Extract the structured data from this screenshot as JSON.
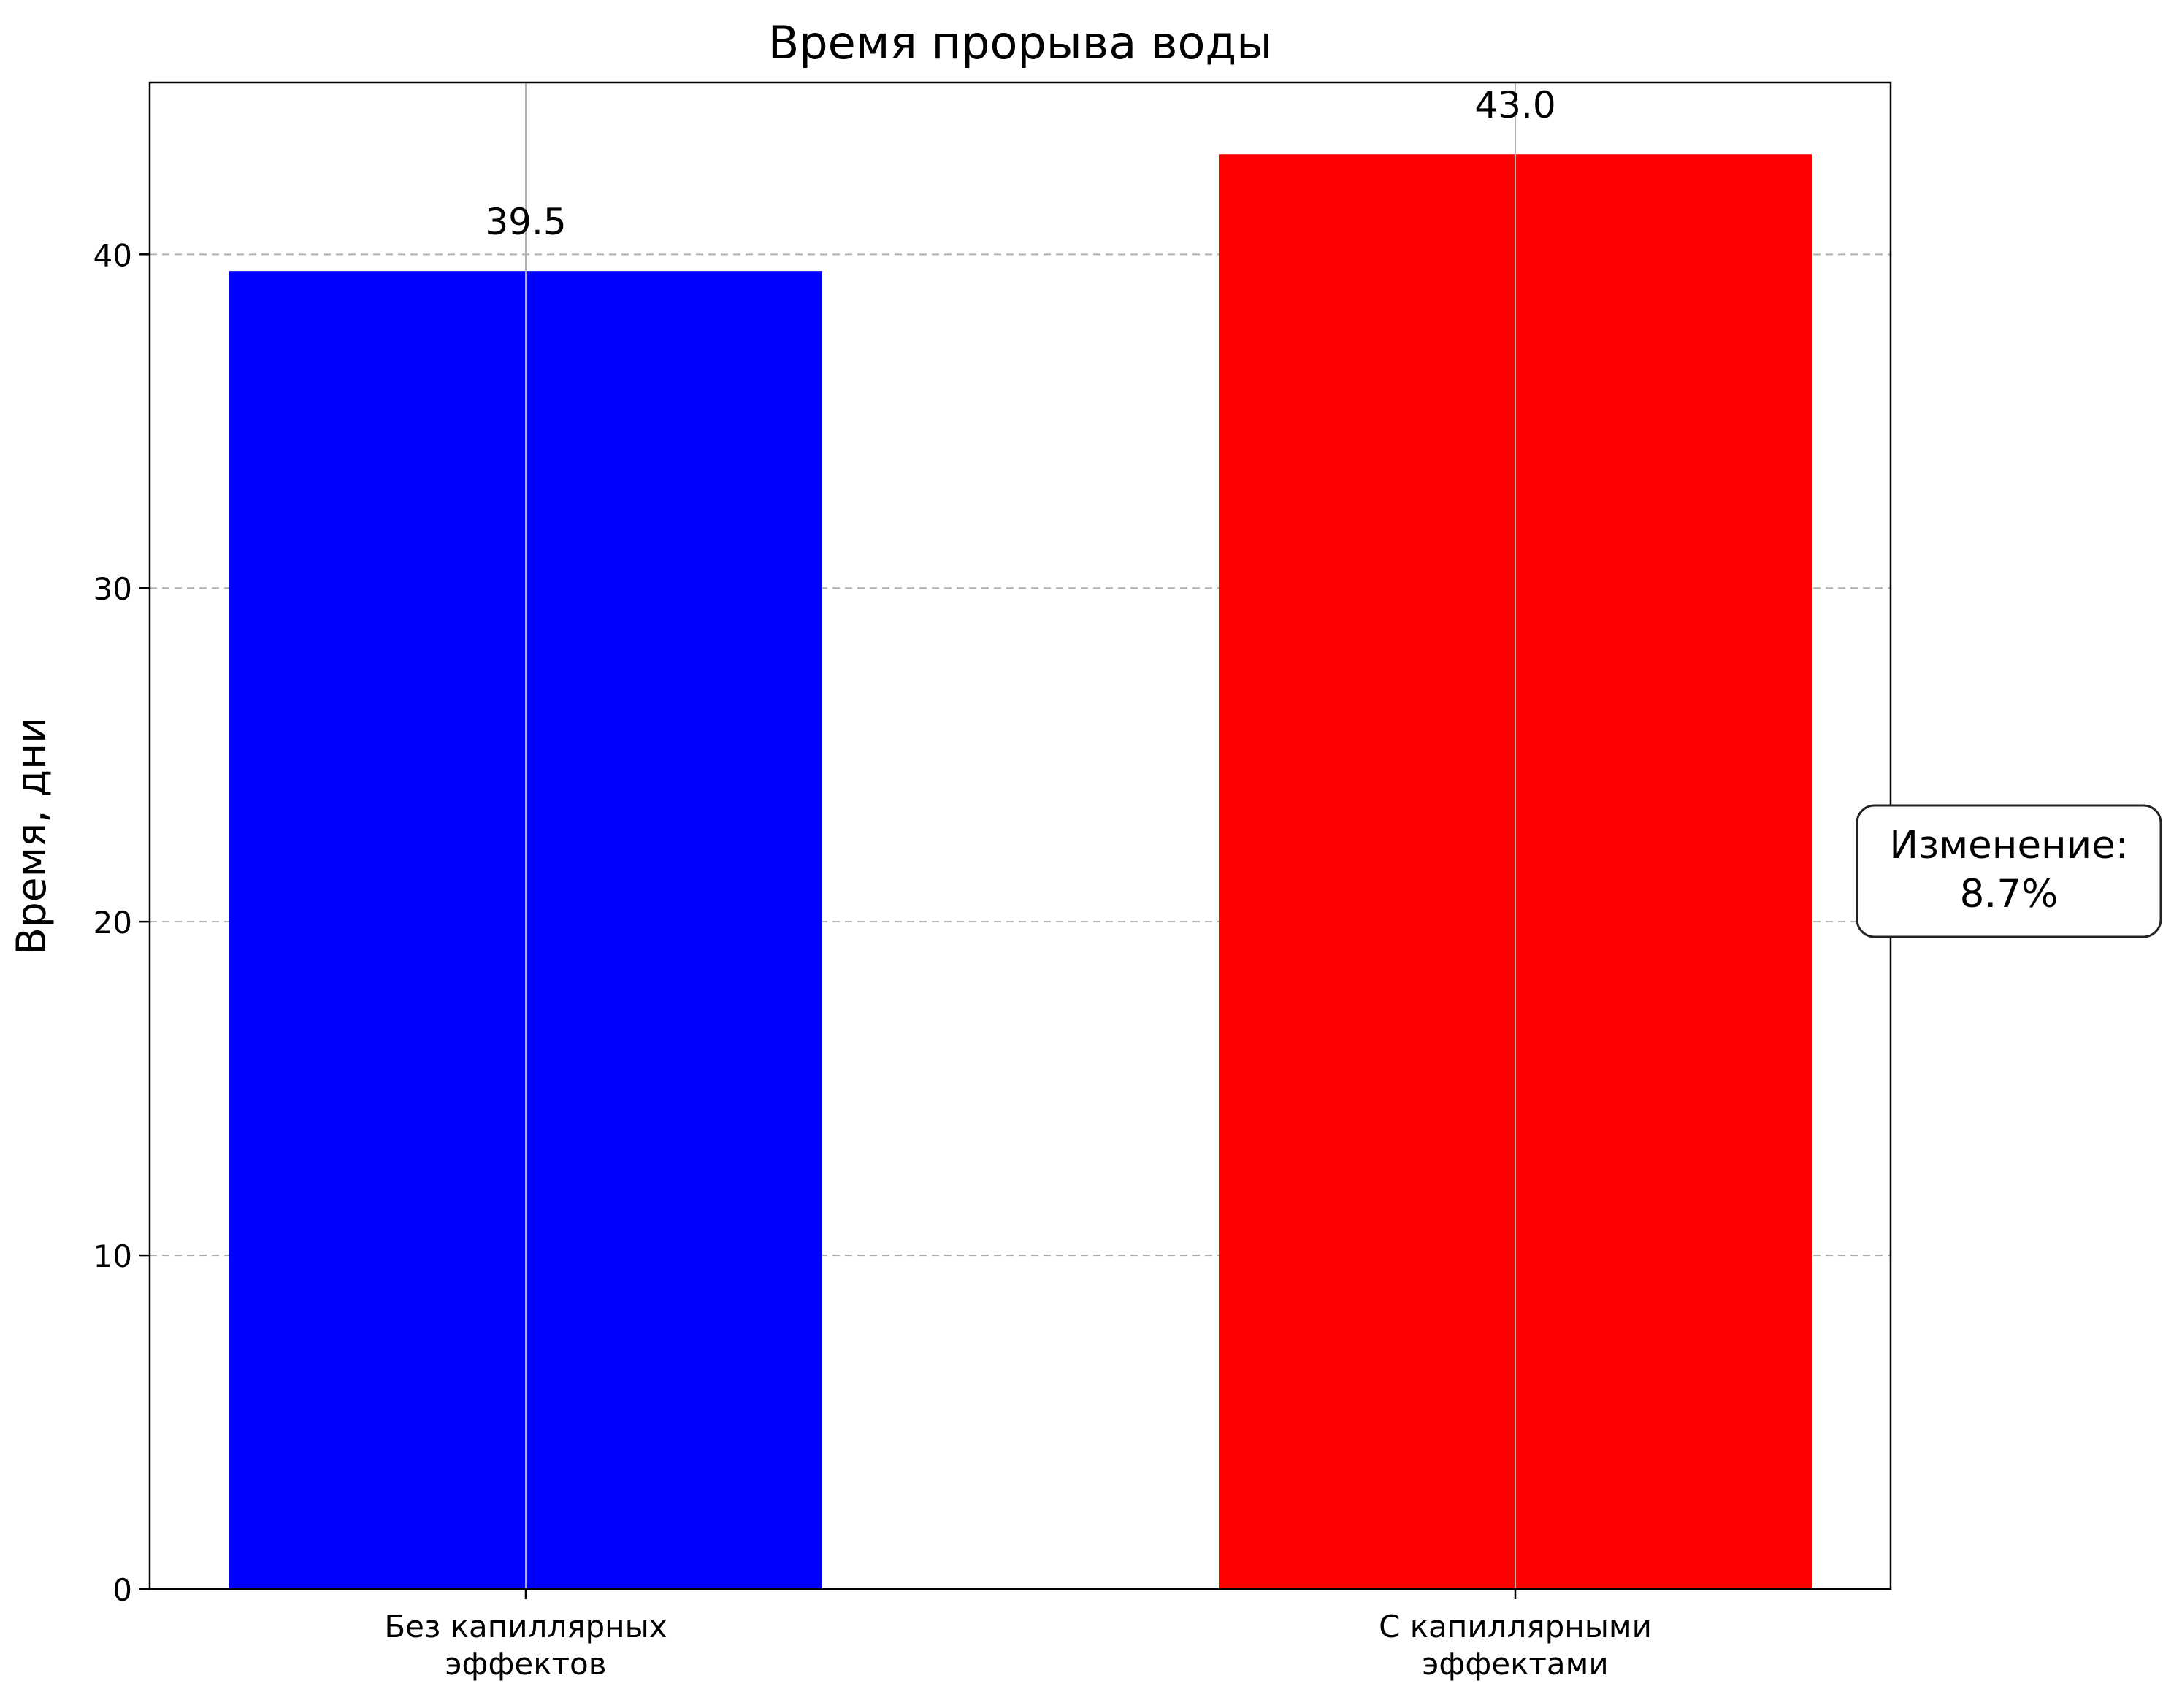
{
  "chart_data": {
    "type": "bar",
    "title": "Время прорыва воды",
    "xlabel": "",
    "ylabel": "Время, дни",
    "categories": [
      [
        "Без капиллярных",
        "эффектов"
      ],
      [
        "С капиллярными",
        "эффектами"
      ]
    ],
    "values": [
      39.5,
      43.0
    ],
    "value_labels": [
      "39.5",
      "43.0"
    ],
    "bar_colors": [
      "#0000ff",
      "#ff0000"
    ],
    "ylim": [
      0,
      45.15
    ],
    "yticks": [
      0,
      10,
      20,
      30,
      40
    ],
    "ytick_labels": [
      "0",
      "10",
      "20",
      "30",
      "40"
    ],
    "grid": {
      "y": true,
      "y_style": "dashed",
      "x": true,
      "x_style": "solid",
      "color": "#b0b0b0"
    },
    "annotation": {
      "lines": [
        "Изменение:",
        "8.7%"
      ],
      "placement": "right-of-plot"
    }
  }
}
